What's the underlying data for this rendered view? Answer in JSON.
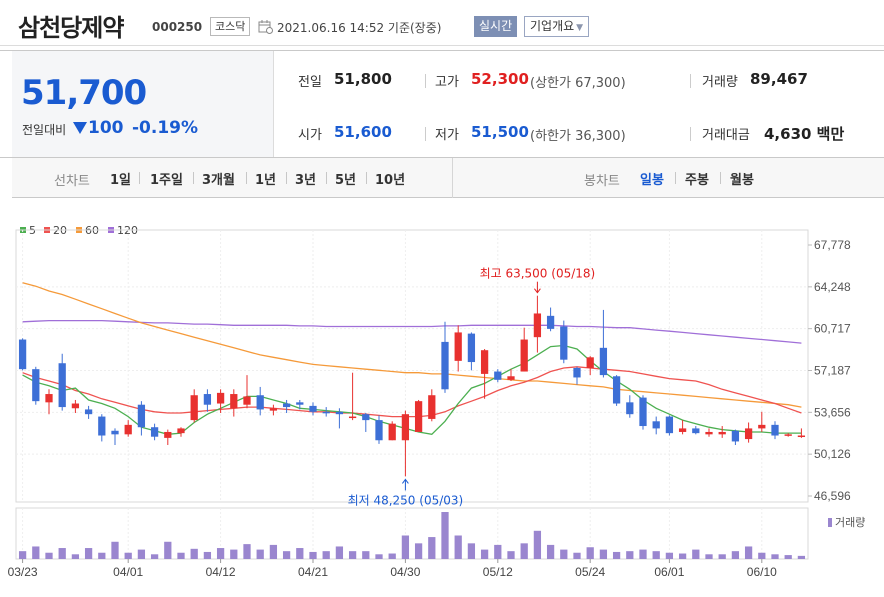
{
  "header": {
    "stock_name": "삼천당제약",
    "stock_code": "000250",
    "market": "코스닥",
    "timestamp": "2021.06.16 14:52  기준(장중)",
    "realtime_button": "실시간",
    "overview_button": "기업개요"
  },
  "quote": {
    "current_price": "51,700",
    "change_label": "전일대비",
    "change_value": "100",
    "change_direction": "down",
    "change_rate": "-0.19%",
    "prev_close_label": "전일",
    "prev_close": "51,800",
    "open_label": "시가",
    "open": "51,600",
    "high_label": "고가",
    "high": "52,300",
    "upper_limit": "(상한가 67,300)",
    "low_label": "저가",
    "low": "51,500",
    "lower_limit": "(하한가 36,300)",
    "volume_label": "거래량",
    "volume": "89,467",
    "amount_label": "거래대금",
    "amount": "4,630 백만"
  },
  "periods": {
    "label": "선차트",
    "items": [
      "1일",
      "1주일",
      "3개월",
      "1년",
      "3년",
      "5년",
      "10년"
    ]
  },
  "candle_types": {
    "label": "봉차트",
    "items": [
      "일봉",
      "주봉",
      "월봉"
    ],
    "active": "일봉"
  },
  "legend": [
    {
      "name": "5",
      "color": "#4caf50"
    },
    {
      "name": "20",
      "color": "#ef5350"
    },
    {
      "name": "60",
      "color": "#f59a3a"
    },
    {
      "name": "120",
      "color": "#a06fd8"
    }
  ],
  "colors": {
    "up": "#e8312f",
    "down": "#3d6fd6",
    "volume": "#9a86cf",
    "high_annotation": "#e02020",
    "low_annotation": "#1a5bd1"
  },
  "chart_data": {
    "type": "candlestick",
    "ylim": [
      46596,
      67778
    ],
    "y_ticks": [
      "67,778",
      "64,248",
      "60,717",
      "57,187",
      "53,656",
      "50,126",
      "46,596"
    ],
    "x_ticks": [
      {
        "index": 0,
        "label": "03/23"
      },
      {
        "index": 8,
        "label": "04/01"
      },
      {
        "index": 15,
        "label": "04/12"
      },
      {
        "index": 22,
        "label": "04/21"
      },
      {
        "index": 29,
        "label": "04/30"
      },
      {
        "index": 36,
        "label": "05/12"
      },
      {
        "index": 43,
        "label": "05/24"
      },
      {
        "index": 49,
        "label": "06/01"
      },
      {
        "index": 56,
        "label": "06/10"
      }
    ],
    "high_annotation": {
      "index": 39,
      "text": "최고 63,500 (05/18)",
      "value": 63500
    },
    "low_annotation": {
      "index": 29,
      "text": "최저 48,250 (05/03)",
      "value": 48250
    },
    "volume_label": "거래량",
    "candles": [
      [
        59800,
        59900,
        57200,
        57300
      ],
      [
        57300,
        57500,
        54300,
        54600
      ],
      [
        54500,
        55600,
        53500,
        55200
      ],
      [
        57800,
        58600,
        53800,
        54100
      ],
      [
        54000,
        54700,
        53600,
        54400
      ],
      [
        53900,
        54200,
        53100,
        53500
      ],
      [
        53300,
        53500,
        51200,
        51700
      ],
      [
        52100,
        52300,
        50900,
        51800
      ],
      [
        51800,
        53000,
        51600,
        52600
      ],
      [
        54300,
        54600,
        51700,
        52400
      ],
      [
        52400,
        52700,
        51300,
        51600
      ],
      [
        51500,
        52200,
        50900,
        52000
      ],
      [
        51900,
        52400,
        51600,
        52300
      ],
      [
        53000,
        55600,
        52800,
        55100
      ],
      [
        55200,
        55600,
        53700,
        54300
      ],
      [
        54400,
        55600,
        53600,
        55300
      ],
      [
        54000,
        55600,
        53300,
        55200
      ],
      [
        54300,
        56800,
        54000,
        55000
      ],
      [
        55100,
        55800,
        53400,
        53900
      ],
      [
        53800,
        54300,
        53400,
        54000
      ],
      [
        54400,
        54700,
        53600,
        54100
      ],
      [
        54500,
        54700,
        53900,
        54300
      ],
      [
        54200,
        54500,
        53400,
        53700
      ],
      [
        53700,
        54100,
        53300,
        53600
      ],
      [
        53700,
        54000,
        52300,
        53500
      ],
      [
        53300,
        57000,
        53000,
        53300
      ],
      [
        53500,
        53600,
        52000,
        53000
      ],
      [
        53000,
        53400,
        51000,
        51300
      ],
      [
        51300,
        52900,
        51300,
        52700
      ],
      [
        51300,
        53800,
        48250,
        53500
      ],
      [
        52000,
        54700,
        52000,
        54600
      ],
      [
        53100,
        55600,
        52900,
        55100
      ],
      [
        59600,
        61300,
        55300,
        55600
      ],
      [
        58000,
        61000,
        57100,
        60400
      ],
      [
        60300,
        60400,
        57200,
        57900
      ],
      [
        56900,
        59000,
        54800,
        58900
      ],
      [
        57100,
        57300,
        56200,
        56400
      ],
      [
        56400,
        57300,
        56300,
        56700
      ],
      [
        57100,
        60800,
        57100,
        59800
      ],
      [
        60000,
        63500,
        58700,
        62000
      ],
      [
        61800,
        62500,
        60500,
        60700
      ],
      [
        60900,
        61400,
        57800,
        58100
      ],
      [
        57400,
        57500,
        56000,
        56600
      ],
      [
        57400,
        58400,
        56800,
        58300
      ],
      [
        59100,
        62300,
        56600,
        56800
      ],
      [
        56700,
        56800,
        54200,
        54400
      ],
      [
        54500,
        55100,
        53200,
        53500
      ],
      [
        54900,
        55100,
        52200,
        52500
      ],
      [
        52900,
        53300,
        51800,
        52300
      ],
      [
        53300,
        53400,
        51700,
        51900
      ],
      [
        52000,
        53000,
        51800,
        52300
      ],
      [
        52300,
        52500,
        51800,
        51900
      ],
      [
        51800,
        52300,
        51600,
        52000
      ],
      [
        51800,
        52500,
        51500,
        52000
      ],
      [
        52100,
        52200,
        50900,
        51200
      ],
      [
        51400,
        52800,
        51100,
        52300
      ],
      [
        52300,
        53700,
        52000,
        52600
      ],
      [
        52600,
        52900,
        51400,
        51700
      ],
      [
        51800,
        51900,
        51600,
        51800
      ],
      [
        51600,
        52300,
        51500,
        51700
      ]
    ],
    "volume": [
      10,
      16,
      8,
      14,
      6,
      14,
      8,
      22,
      8,
      12,
      6,
      22,
      8,
      13,
      9,
      14,
      12,
      19,
      12,
      18,
      10,
      14,
      9,
      10,
      16,
      10,
      10,
      6,
      7,
      30,
      20,
      28,
      60,
      30,
      20,
      12,
      18,
      10,
      20,
      36,
      18,
      12,
      8,
      15,
      12,
      9,
      10,
      12,
      10,
      8,
      7,
      12,
      6,
      6,
      10,
      16,
      8,
      6,
      5,
      4
    ],
    "ma5": [
      56800,
      56200,
      55900,
      55500,
      55700,
      54700,
      54400,
      54000,
      53300,
      52400,
      52100,
      51800,
      51900,
      52800,
      53500,
      54000,
      54500,
      55000,
      55000,
      54700,
      54400,
      54000,
      53900,
      53800,
      53700,
      53600,
      53300,
      52900,
      52600,
      52300,
      52000,
      51800,
      52900,
      54400,
      55700,
      56100,
      56700,
      57300,
      57800,
      58500,
      59200,
      59300,
      59000,
      58000,
      57100,
      56300,
      55600,
      54700,
      54000,
      53500,
      53000,
      52700,
      52400,
      52200,
      52100,
      52000,
      52000,
      51900,
      51900,
      51900
    ],
    "ma20": [
      57000,
      56600,
      56300,
      56000,
      55500,
      55200,
      54800,
      54500,
      54200,
      53900,
      53700,
      53600,
      53600,
      53700,
      53800,
      53900,
      54000,
      54100,
      54100,
      54000,
      53900,
      53800,
      53700,
      53700,
      53600,
      53600,
      53500,
      53400,
      53300,
      53300,
      53300,
      53400,
      53700,
      54200,
      54600,
      55000,
      55500,
      55900,
      56200,
      56600,
      57100,
      57400,
      57500,
      57400,
      57300,
      57200,
      57100,
      56900,
      56700,
      56500,
      56400,
      56300,
      56000,
      55600,
      55300,
      55000,
      54700,
      54400,
      54000,
      53600
    ],
    "ma60": [
      64600,
      64300,
      63900,
      63600,
      63200,
      62800,
      62400,
      62000,
      61600,
      61200,
      60900,
      60600,
      60300,
      60000,
      59700,
      59400,
      59100,
      58800,
      58500,
      58300,
      58100,
      57900,
      57700,
      57600,
      57500,
      57400,
      57300,
      57200,
      57100,
      57000,
      57000,
      56900,
      56900,
      56800,
      56700,
      56600,
      56500,
      56400,
      56300,
      56300,
      56200,
      56100,
      56000,
      55900,
      55800,
      55600,
      55500,
      55400,
      55300,
      55200,
      55100,
      55000,
      54900,
      54800,
      54700,
      54600,
      54500,
      54400,
      54300,
      54100
    ],
    "ma120": [
      61300,
      61350,
      61400,
      61400,
      61400,
      61400,
      61400,
      61350,
      61300,
      61250,
      61200,
      61200,
      61150,
      61100,
      61100,
      61050,
      61000,
      61000,
      61000,
      61000,
      61000,
      60950,
      60950,
      60900,
      60900,
      60900,
      60900,
      60900,
      60900,
      60900,
      60900,
      60900,
      60950,
      60950,
      61000,
      61000,
      61000,
      61000,
      61000,
      61000,
      61000,
      60950,
      60900,
      60900,
      60850,
      60800,
      60800,
      60700,
      60600,
      60500,
      60400,
      60300,
      60200,
      60100,
      60000,
      59900,
      59800,
      59700,
      59600,
      59500
    ]
  }
}
